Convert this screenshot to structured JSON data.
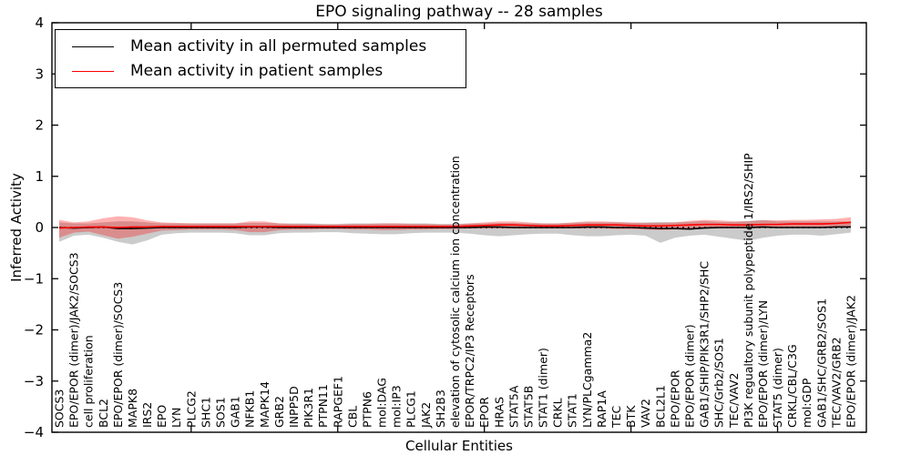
{
  "title": "EPO signaling pathway -- 28 samples",
  "legend": {
    "items": [
      {
        "label": "Mean activity in all permuted samples",
        "color": "#000000"
      },
      {
        "label": "Mean activity in patient samples",
        "color": "#ff0000"
      }
    ]
  },
  "chart_data": {
    "type": "line",
    "title": "EPO signaling pathway -- 28 samples",
    "xlabel": "Cellular Entities",
    "ylabel": "Inferred Activity",
    "ylim": [
      -4,
      4
    ],
    "yticks": [
      -4,
      -3,
      -2,
      -1,
      0,
      1,
      2,
      3,
      4
    ],
    "grid": false,
    "legend_position": "upper left",
    "zero_line_style": "dotted",
    "frame_color": "#000000",
    "categories": [
      "SOCS3",
      "EPO/EPOR (dimer)/JAK2/SOCS3",
      "cell proliferation",
      "BCL2",
      "EPO/EPOR (dimer)/SOCS3",
      "MAPK8",
      "IRS2",
      "EPO",
      "LYN",
      "PLCG2",
      "SHC1",
      "SOS1",
      "GAB1",
      "NFKB1",
      "MAPK14",
      "GRB2",
      "INPP5D",
      "PIK3R1",
      "PTPN11",
      "RAPGEF1",
      "CBL",
      "PTPN6",
      "mol:DAG",
      "mol:IP3",
      "PLCG1",
      "JAK2",
      "SH2B3",
      "elevation of cytosolic calcium ion concentration",
      "EPOR/TRPC2/IP3 Receptors",
      "EPOR",
      "HRAS",
      "STAT5A",
      "STAT5B",
      "STAT1 (dimer)",
      "CRKL",
      "STAT1",
      "LYN/PLCgamma2",
      "RAP1A",
      "TEC",
      "BTK",
      "VAV2",
      "BCL2L1",
      "EPO/EPOR",
      "EPO/EPOR (dimer)",
      "GAB1/SHIP/PIK3R1/SHP2/SHC",
      "SHC/Grb2/SOS1",
      "TEC/VAV2",
      "PI3K regualtory subunit polypeptide 1/IRS2/SHIP",
      "EPO/EPOR (dimer)/LYN",
      "STAT5 (dimer)",
      "CRKL/CBL/C3G",
      "mol:GDP",
      "GAB1/SHC/GRB2/SOS1",
      "TEC/VAV2/GRB2",
      "EPO/EPOR (dimer)/JAK2"
    ],
    "series": [
      {
        "name": "Mean activity in all permuted samples",
        "color": "#000000",
        "values": [
          0.0,
          -0.01,
          0.0,
          0.01,
          -0.02,
          -0.02,
          -0.01,
          0.0,
          0.0,
          0.0,
          0.0,
          0.0,
          0.0,
          0.01,
          0.01,
          0.0,
          0.0,
          0.0,
          0.0,
          0.0,
          0.0,
          0.0,
          0.0,
          0.0,
          0.0,
          0.0,
          0.0,
          0.0,
          0.0,
          0.01,
          0.01,
          0.0,
          0.0,
          0.0,
          0.0,
          0.0,
          0.01,
          0.01,
          0.0,
          0.0,
          -0.01,
          -0.02,
          -0.02,
          -0.03,
          -0.01,
          0.0,
          0.0,
          0.0,
          0.01,
          0.0,
          0.0,
          0.0,
          0.0,
          0.01,
          0.01
        ]
      },
      {
        "name": "Mean activity in patient samples",
        "color": "#ff0000",
        "values": [
          -0.01,
          0.0,
          0.01,
          0.01,
          0.0,
          0.01,
          0.01,
          0.02,
          0.02,
          0.02,
          0.02,
          0.02,
          0.02,
          0.02,
          0.02,
          0.02,
          0.02,
          0.02,
          0.02,
          0.02,
          0.02,
          0.02,
          0.02,
          0.02,
          0.02,
          0.02,
          0.02,
          0.02,
          0.03,
          0.04,
          0.05,
          0.05,
          0.04,
          0.03,
          0.03,
          0.04,
          0.05,
          0.05,
          0.05,
          0.04,
          0.03,
          0.03,
          0.04,
          0.05,
          0.06,
          0.06,
          0.05,
          0.05,
          0.06,
          0.06,
          0.07,
          0.07,
          0.07,
          0.08,
          0.1
        ]
      }
    ],
    "bands": [
      {
        "name": "permuted samples range",
        "color": "#777777",
        "alpha": 0.38,
        "upper": [
          0.1,
          0.08,
          0.08,
          0.1,
          0.12,
          0.12,
          0.1,
          0.08,
          0.08,
          0.08,
          0.08,
          0.08,
          0.08,
          0.09,
          0.09,
          0.08,
          0.08,
          0.08,
          0.07,
          0.07,
          0.08,
          0.08,
          0.08,
          0.08,
          0.08,
          0.08,
          0.07,
          0.07,
          0.08,
          0.08,
          0.09,
          0.09,
          0.08,
          0.08,
          0.08,
          0.09,
          0.1,
          0.1,
          0.1,
          0.09,
          0.1,
          0.11,
          0.1,
          0.11,
          0.13,
          0.11,
          0.11,
          0.13,
          0.15,
          0.12,
          0.12,
          0.12,
          0.12,
          0.12,
          0.12
        ],
        "lower": [
          -0.28,
          -0.16,
          -0.14,
          -0.2,
          -0.28,
          -0.33,
          -0.25,
          -0.14,
          -0.11,
          -0.1,
          -0.1,
          -0.1,
          -0.11,
          -0.15,
          -0.15,
          -0.11,
          -0.1,
          -0.1,
          -0.09,
          -0.09,
          -0.11,
          -0.12,
          -0.13,
          -0.13,
          -0.11,
          -0.1,
          -0.1,
          -0.1,
          -0.12,
          -0.15,
          -0.17,
          -0.15,
          -0.13,
          -0.12,
          -0.12,
          -0.15,
          -0.17,
          -0.17,
          -0.15,
          -0.14,
          -0.16,
          -0.3,
          -0.2,
          -0.16,
          -0.14,
          -0.18,
          -0.22,
          -0.26,
          -0.2,
          -0.16,
          -0.14,
          -0.14,
          -0.16,
          -0.13,
          -0.1
        ]
      },
      {
        "name": "patient samples range",
        "color": "#ff0000",
        "alpha": 0.3,
        "upper": [
          0.15,
          0.1,
          0.12,
          0.18,
          0.22,
          0.2,
          0.14,
          0.1,
          0.09,
          0.08,
          0.08,
          0.08,
          0.08,
          0.12,
          0.12,
          0.08,
          0.07,
          0.07,
          0.06,
          0.06,
          0.07,
          0.07,
          0.08,
          0.08,
          0.07,
          0.07,
          0.06,
          0.06,
          0.08,
          0.1,
          0.12,
          0.12,
          0.1,
          0.08,
          0.08,
          0.1,
          0.12,
          0.12,
          0.11,
          0.1,
          0.09,
          0.09,
          0.1,
          0.13,
          0.15,
          0.14,
          0.12,
          0.12,
          0.14,
          0.14,
          0.15,
          0.15,
          0.16,
          0.17,
          0.2
        ],
        "lower": [
          -0.2,
          -0.1,
          -0.08,
          -0.15,
          -0.22,
          -0.18,
          -0.12,
          -0.06,
          -0.05,
          -0.04,
          -0.04,
          -0.04,
          -0.05,
          -0.09,
          -0.09,
          -0.05,
          -0.04,
          -0.04,
          -0.03,
          -0.03,
          -0.04,
          -0.04,
          -0.05,
          -0.05,
          -0.04,
          -0.04,
          -0.03,
          -0.03,
          -0.02,
          -0.02,
          -0.02,
          -0.02,
          -0.02,
          -0.02,
          -0.02,
          -0.02,
          -0.02,
          -0.02,
          -0.03,
          -0.03,
          -0.04,
          -0.05,
          -0.04,
          -0.04,
          -0.02,
          -0.02,
          -0.02,
          -0.02,
          -0.01,
          -0.01,
          -0.01,
          0.0,
          0.0,
          0.01,
          0.02
        ]
      }
    ]
  }
}
